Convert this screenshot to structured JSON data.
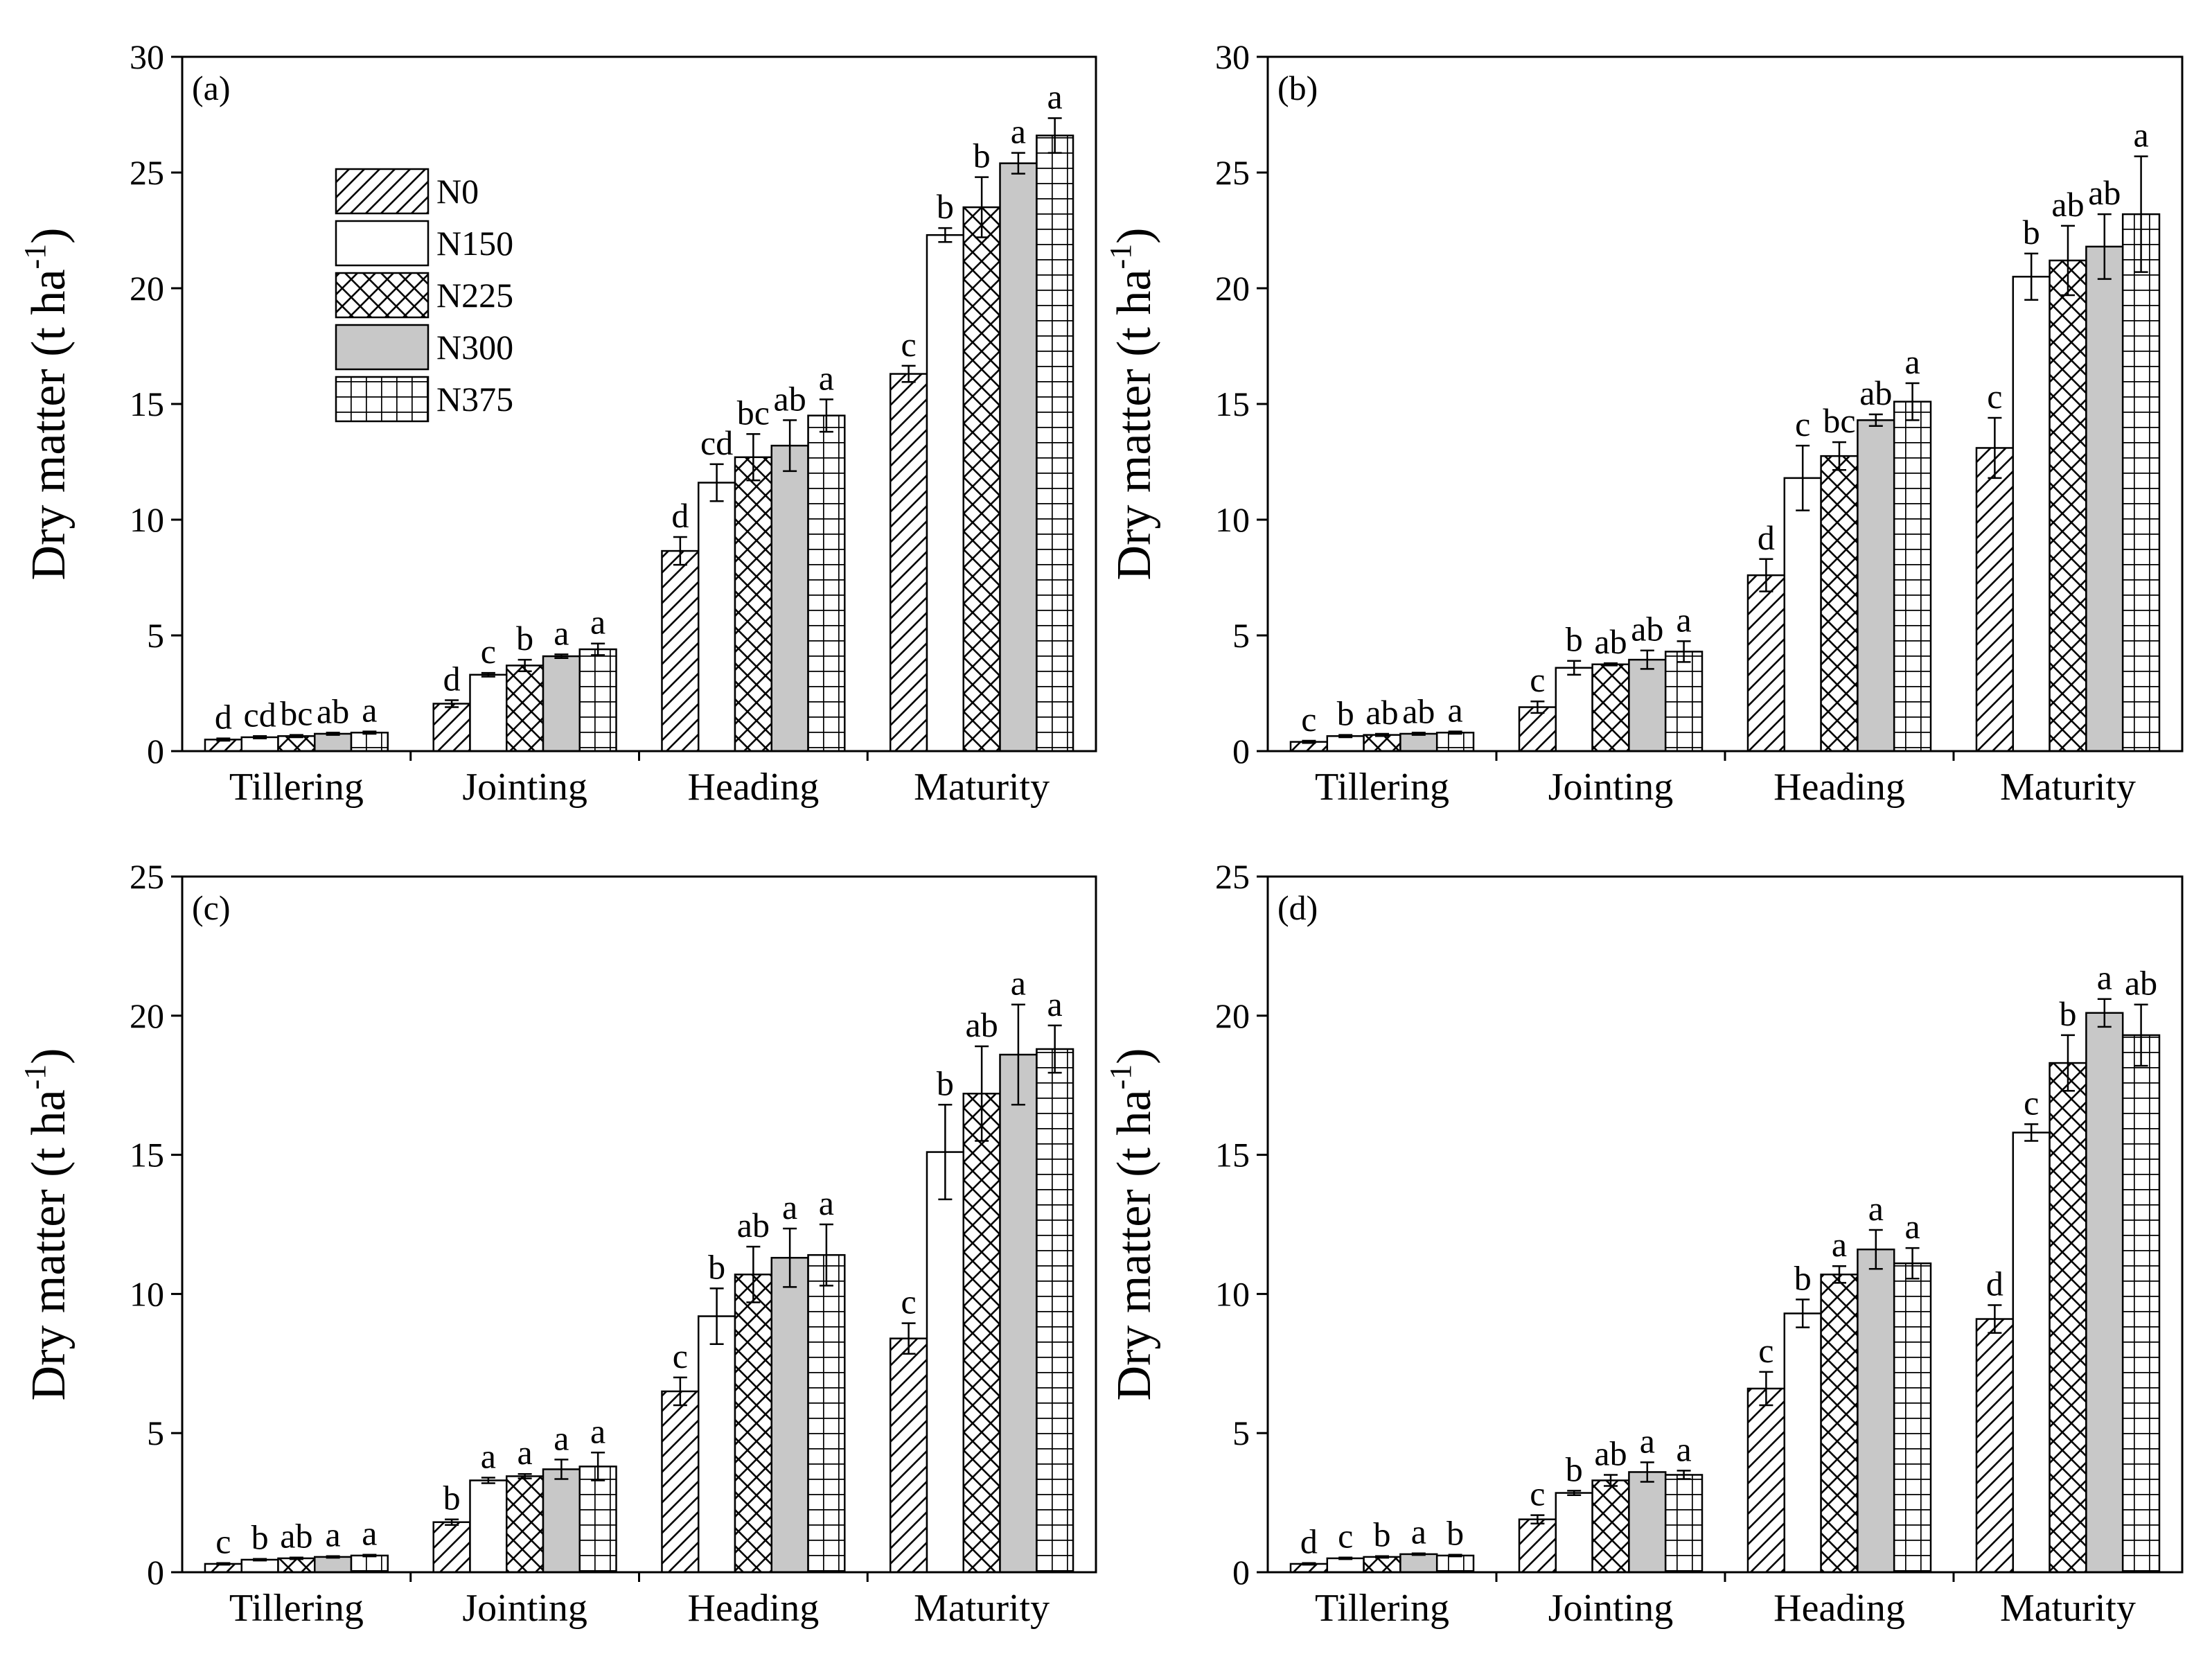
{
  "chart_data": [
    {
      "type": "bar",
      "panel_label": "(a)",
      "ylabel_main": "Dry matter (t ha",
      "ylabel_sup": "-1",
      "ylabel_close": ")",
      "ylim": [
        0,
        30
      ],
      "yticks": [
        "0",
        "5",
        "10",
        "15",
        "20",
        "25",
        "30"
      ],
      "categories": [
        "Tillering",
        "Jointing",
        "Heading",
        "Maturity"
      ],
      "legend_position": "top-left",
      "series": [
        {
          "name": "N0",
          "values": [
            0.5,
            2.05,
            8.65,
            16.3
          ],
          "errors": [
            0.05,
            0.15,
            0.6,
            0.35
          ],
          "letters": [
            "d",
            "d",
            "d",
            "c"
          ]
        },
        {
          "name": "N150",
          "values": [
            0.6,
            3.3,
            11.6,
            22.3
          ],
          "errors": [
            0.05,
            0.08,
            0.8,
            0.3
          ],
          "letters": [
            "cd",
            "c",
            "cd",
            "b"
          ]
        },
        {
          "name": "N225",
          "values": [
            0.65,
            3.7,
            12.7,
            23.5
          ],
          "errors": [
            0.05,
            0.25,
            1.0,
            1.3
          ],
          "letters": [
            "bc",
            "b",
            "bc",
            "b"
          ]
        },
        {
          "name": "N300",
          "values": [
            0.75,
            4.1,
            13.2,
            25.4
          ],
          "errors": [
            0.05,
            0.08,
            1.1,
            0.45
          ],
          "letters": [
            "ab",
            "a",
            "ab",
            "a"
          ]
        },
        {
          "name": "N375",
          "values": [
            0.8,
            4.4,
            14.5,
            26.6
          ],
          "errors": [
            0.05,
            0.25,
            0.7,
            0.75
          ],
          "letters": [
            "a",
            "a",
            "a",
            "a"
          ]
        }
      ]
    },
    {
      "type": "bar",
      "panel_label": "(b)",
      "ylabel_main": "Dry matter (t ha",
      "ylabel_sup": "-1",
      "ylabel_close": ")",
      "ylim": [
        0,
        30
      ],
      "yticks": [
        "0",
        "5",
        "10",
        "15",
        "20",
        "25",
        "30"
      ],
      "categories": [
        "Tillering",
        "Jointing",
        "Heading",
        "Maturity"
      ],
      "series": [
        {
          "name": "N0",
          "values": [
            0.4,
            1.9,
            7.6,
            13.1
          ],
          "errors": [
            0.05,
            0.25,
            0.7,
            1.3
          ],
          "letters": [
            "c",
            "c",
            "d",
            "c"
          ]
        },
        {
          "name": "N150",
          "values": [
            0.65,
            3.6,
            11.8,
            20.5
          ],
          "errors": [
            0.05,
            0.3,
            1.4,
            1.0
          ],
          "letters": [
            "b",
            "b",
            "c",
            "b"
          ]
        },
        {
          "name": "N225",
          "values": [
            0.7,
            3.75,
            12.75,
            21.2
          ],
          "errors": [
            0.05,
            0.05,
            0.6,
            1.5
          ],
          "letters": [
            "ab",
            "ab",
            "bc",
            "ab"
          ]
        },
        {
          "name": "N300",
          "values": [
            0.75,
            3.95,
            14.3,
            21.8
          ],
          "errors": [
            0.05,
            0.4,
            0.25,
            1.4
          ],
          "letters": [
            "ab",
            "ab",
            "ab",
            "ab"
          ]
        },
        {
          "name": "N375",
          "values": [
            0.8,
            4.3,
            15.1,
            23.2
          ],
          "errors": [
            0.05,
            0.45,
            0.8,
            2.5
          ],
          "letters": [
            "a",
            "a",
            "a",
            "a"
          ]
        }
      ]
    },
    {
      "type": "bar",
      "panel_label": "(c)",
      "ylabel_main": "Dry matter (t ha",
      "ylabel_sup": "-1",
      "ylabel_close": ")",
      "ylim": [
        0,
        25
      ],
      "yticks": [
        "0",
        "5",
        "10",
        "15",
        "20",
        "25"
      ],
      "categories": [
        "Tillering",
        "Jointing",
        "Heading",
        "Maturity"
      ],
      "series": [
        {
          "name": "N0",
          "values": [
            0.3,
            1.8,
            6.5,
            8.4
          ],
          "errors": [
            0.03,
            0.1,
            0.5,
            0.55
          ],
          "letters": [
            "c",
            "b",
            "c",
            "c"
          ]
        },
        {
          "name": "N150",
          "values": [
            0.45,
            3.3,
            9.2,
            15.1
          ],
          "errors": [
            0.03,
            0.1,
            1.0,
            1.7
          ],
          "letters": [
            "b",
            "a",
            "b",
            "b"
          ]
        },
        {
          "name": "N225",
          "values": [
            0.5,
            3.45,
            10.7,
            17.2
          ],
          "errors": [
            0.03,
            0.08,
            1.0,
            1.7
          ],
          "letters": [
            "ab",
            "a",
            "ab",
            "ab"
          ]
        },
        {
          "name": "N300",
          "values": [
            0.55,
            3.7,
            11.3,
            18.6
          ],
          "errors": [
            0.03,
            0.35,
            1.05,
            1.8
          ],
          "letters": [
            "a",
            "a",
            "a",
            "a"
          ]
        },
        {
          "name": "N375",
          "values": [
            0.6,
            3.8,
            11.4,
            18.8
          ],
          "errors": [
            0.03,
            0.5,
            1.1,
            0.85
          ],
          "letters": [
            "a",
            "a",
            "a",
            "a"
          ]
        }
      ]
    },
    {
      "type": "bar",
      "panel_label": "(d)",
      "ylabel_main": "Dry matter (t ha",
      "ylabel_sup": "-1",
      "ylabel_close": ")",
      "ylim": [
        0,
        25
      ],
      "yticks": [
        "0",
        "5",
        "10",
        "15",
        "20",
        "25"
      ],
      "categories": [
        "Tillering",
        "Jointing",
        "Heading",
        "Maturity"
      ],
      "series": [
        {
          "name": "N0",
          "values": [
            0.3,
            1.9,
            6.6,
            9.1
          ],
          "errors": [
            0.03,
            0.15,
            0.6,
            0.5
          ],
          "letters": [
            "d",
            "c",
            "c",
            "d"
          ]
        },
        {
          "name": "N150",
          "values": [
            0.5,
            2.85,
            9.3,
            15.8
          ],
          "errors": [
            0.03,
            0.08,
            0.5,
            0.3
          ],
          "letters": [
            "c",
            "b",
            "b",
            "c"
          ]
        },
        {
          "name": "N225",
          "values": [
            0.55,
            3.3,
            10.7,
            18.3
          ],
          "errors": [
            0.03,
            0.2,
            0.3,
            1.0
          ],
          "letters": [
            "b",
            "ab",
            "a",
            "b"
          ]
        },
        {
          "name": "N300",
          "values": [
            0.65,
            3.6,
            11.6,
            20.1
          ],
          "errors": [
            0.03,
            0.35,
            0.7,
            0.5
          ],
          "letters": [
            "a",
            "a",
            "a",
            "a"
          ]
        },
        {
          "name": "N375",
          "values": [
            0.6,
            3.5,
            11.1,
            19.3
          ],
          "errors": [
            0.03,
            0.15,
            0.55,
            1.1
          ],
          "letters": [
            "b",
            "a",
            "a",
            "ab"
          ]
        }
      ]
    }
  ],
  "legend": {
    "items": [
      {
        "name": "N0",
        "pattern": "diag"
      },
      {
        "name": "N150",
        "pattern": "blank"
      },
      {
        "name": "N225",
        "pattern": "cross"
      },
      {
        "name": "N300",
        "pattern": "gray"
      },
      {
        "name": "N375",
        "pattern": "grid"
      }
    ]
  },
  "colors": {
    "axis": "#000000",
    "gray_fill": "#c8c8c8",
    "background": "#ffffff"
  }
}
